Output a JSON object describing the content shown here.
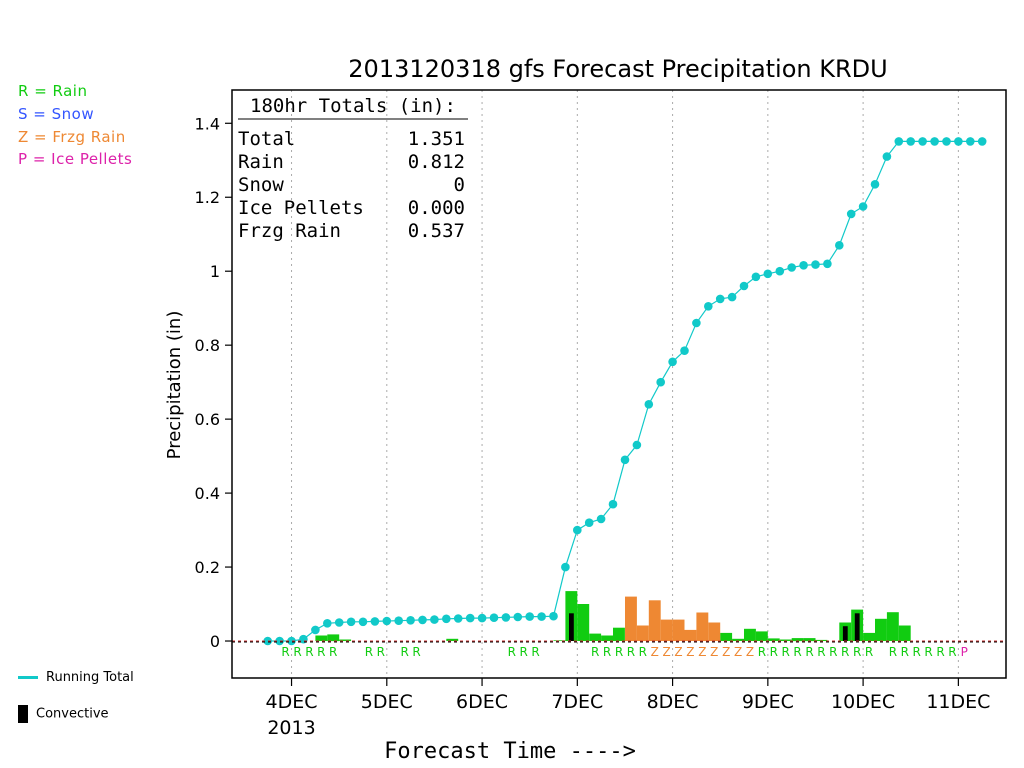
{
  "left_legend": {
    "rain": "R = Rain",
    "snow": "S = Snow",
    "frzg": "Z = Frzg Rain",
    "pellets": "P = Ice Pellets"
  },
  "bottom_legend": {
    "running_total": "Running Total",
    "convective": "Convective"
  },
  "colors": {
    "rain": "#11cc11",
    "snow": "#3355ff",
    "frzg": "#ee8833",
    "pellets": "#dd22aa",
    "running_total": "#11c9c9",
    "convective": "#000000"
  },
  "chart_data": {
    "type": "bar",
    "title": "2013120318 gfs Forecast Precipitation KRDU",
    "xlabel": "Forecast Time ---->",
    "ylabel": "Precipitation (in)",
    "ylim": [
      -0.1,
      1.49
    ],
    "yticks": [
      0,
      0.2,
      0.4,
      0.6,
      0.8,
      1,
      1.2,
      1.4
    ],
    "ytick_labels": [
      "0",
      "0.2",
      "0.4",
      "0.6",
      "0.8",
      "1",
      "1.2",
      "1.4"
    ],
    "xlim_hours": [
      0,
      180
    ],
    "day_ticks": [
      {
        "label": "4DEC",
        "sub": "2013",
        "hour": 6
      },
      {
        "label": "5DEC",
        "hour": 30
      },
      {
        "label": "6DEC",
        "hour": 54
      },
      {
        "label": "7DEC",
        "hour": 78
      },
      {
        "label": "8DEC",
        "hour": 102
      },
      {
        "label": "9DEC",
        "hour": 126
      },
      {
        "label": "10DEC",
        "hour": 150
      },
      {
        "label": "11DEC",
        "hour": 174
      }
    ],
    "grid": "vertical dotted at day boundaries",
    "totals_box": {
      "header": "180hr Totals (in):",
      "rows": [
        {
          "label": "Total",
          "value": "1.351"
        },
        {
          "label": "Rain",
          "value": "0.812"
        },
        {
          "label": "Snow",
          "value": "0"
        },
        {
          "label": "Ice Pellets",
          "value": "0.000"
        },
        {
          "label": "Frzg Rain",
          "value": "0.537"
        }
      ]
    },
    "running_total": {
      "name": "Running Total",
      "hours": [
        0,
        3,
        6,
        9,
        12,
        15,
        18,
        21,
        24,
        27,
        30,
        33,
        36,
        39,
        42,
        45,
        48,
        51,
        54,
        57,
        60,
        63,
        66,
        69,
        72,
        75,
        78,
        81,
        84,
        87,
        90,
        93,
        96,
        99,
        102,
        105,
        108,
        111,
        114,
        117,
        120,
        123,
        126,
        129,
        132,
        135,
        138,
        141,
        144,
        147,
        150,
        153,
        156,
        159,
        162,
        165,
        168,
        171,
        174,
        177,
        180
      ],
      "values": [
        0,
        0,
        0,
        0.005,
        0.03,
        0.048,
        0.05,
        0.052,
        0.052,
        0.053,
        0.054,
        0.055,
        0.056,
        0.057,
        0.058,
        0.06,
        0.061,
        0.062,
        0.062,
        0.063,
        0.064,
        0.065,
        0.066,
        0.066,
        0.067,
        0.2,
        0.3,
        0.32,
        0.33,
        0.37,
        0.49,
        0.53,
        0.64,
        0.7,
        0.755,
        0.785,
        0.86,
        0.905,
        0.925,
        0.93,
        0.96,
        0.985,
        0.993,
        1.0,
        1.01,
        1.016,
        1.018,
        1.02,
        1.07,
        1.155,
        1.175,
        1.235,
        1.31,
        1.351,
        1.351,
        1.351,
        1.351,
        1.351,
        1.351,
        1.351,
        1.351
      ]
    },
    "series": [
      {
        "name": "Rain",
        "periods": [
          {
            "hour": 12,
            "value": 0.015
          },
          {
            "hour": 15,
            "value": 0.018
          },
          {
            "hour": 18,
            "value": 0.004
          },
          {
            "hour": 45,
            "value": 0.006
          },
          {
            "hour": 72,
            "value": 0.002
          },
          {
            "hour": 75,
            "value": 0.135
          },
          {
            "hour": 78,
            "value": 0.1
          },
          {
            "hour": 81,
            "value": 0.02
          },
          {
            "hour": 84,
            "value": 0.015
          },
          {
            "hour": 87,
            "value": 0.036
          },
          {
            "hour": 114,
            "value": 0.022
          },
          {
            "hour": 117,
            "value": 0.006
          },
          {
            "hour": 120,
            "value": 0.033
          },
          {
            "hour": 123,
            "value": 0.026
          },
          {
            "hour": 126,
            "value": 0.007
          },
          {
            "hour": 129,
            "value": 0.004
          },
          {
            "hour": 132,
            "value": 0.008
          },
          {
            "hour": 135,
            "value": 0.008
          },
          {
            "hour": 138,
            "value": 0.003
          },
          {
            "hour": 144,
            "value": 0.05
          },
          {
            "hour": 147,
            "value": 0.085
          },
          {
            "hour": 150,
            "value": 0.022
          },
          {
            "hour": 153,
            "value": 0.06
          },
          {
            "hour": 156,
            "value": 0.078
          },
          {
            "hour": 159,
            "value": 0.042
          }
        ]
      },
      {
        "name": "Frzg Rain",
        "periods": [
          {
            "hour": 90,
            "value": 0.12
          },
          {
            "hour": 93,
            "value": 0.042
          },
          {
            "hour": 96,
            "value": 0.11
          },
          {
            "hour": 99,
            "value": 0.058
          },
          {
            "hour": 102,
            "value": 0.058
          },
          {
            "hour": 105,
            "value": 0.03
          },
          {
            "hour": 108,
            "value": 0.077
          },
          {
            "hour": 111,
            "value": 0.05
          }
        ]
      },
      {
        "name": "Convective",
        "periods": [
          {
            "hour": 75,
            "value": 0.075
          },
          {
            "hour": 144,
            "value": 0.04
          },
          {
            "hour": 147,
            "value": 0.075
          }
        ]
      }
    ],
    "type_labels": [
      {
        "hour": 13.5,
        "code": "R"
      },
      {
        "hour": 16.5,
        "code": "R"
      },
      {
        "hour": 19.5,
        "code": "R"
      },
      {
        "hour": 22.5,
        "code": "R"
      },
      {
        "hour": 25.5,
        "code": "R"
      },
      {
        "hour": 34.5,
        "code": "R"
      },
      {
        "hour": 37.5,
        "code": "R"
      },
      {
        "hour": 43.5,
        "code": "R"
      },
      {
        "hour": 46.5,
        "code": "R"
      },
      {
        "hour": 70.5,
        "code": "R"
      },
      {
        "hour": 73.5,
        "code": "R"
      },
      {
        "hour": 76.5,
        "code": "R"
      },
      {
        "hour": 91.5,
        "code": "R"
      },
      {
        "hour": 94.5,
        "code": "R"
      },
      {
        "hour": 97.5,
        "code": "R"
      },
      {
        "hour": 100.5,
        "code": "R"
      },
      {
        "hour": 103.5,
        "code": "R"
      },
      {
        "hour": 106.5,
        "code": "Z"
      },
      {
        "hour": 109.5,
        "code": "Z"
      },
      {
        "hour": 112.5,
        "code": "Z"
      },
      {
        "hour": 115.5,
        "code": "Z"
      },
      {
        "hour": 118.5,
        "code": "Z"
      },
      {
        "hour": 121.5,
        "code": "Z"
      },
      {
        "hour": 124.5,
        "code": "Z"
      },
      {
        "hour": 127.5,
        "code": "Z"
      },
      {
        "hour": 130.5,
        "code": "Z"
      },
      {
        "hour": 133.5,
        "code": "R"
      },
      {
        "hour": 136.5,
        "code": "R"
      },
      {
        "hour": 139.5,
        "code": "R"
      },
      {
        "hour": 142.5,
        "code": "R"
      },
      {
        "hour": 145.5,
        "code": "R"
      },
      {
        "hour": 148.5,
        "code": "R"
      },
      {
        "hour": 151.5,
        "code": "R"
      },
      {
        "hour": 154.5,
        "code": "R"
      },
      {
        "hour": 157.5,
        "code": "R"
      },
      {
        "hour": 160.5,
        "code": "R"
      },
      {
        "hour": 166.5,
        "code": "R"
      },
      {
        "hour": 169.5,
        "code": "R"
      },
      {
        "hour": 172.5,
        "code": "R"
      },
      {
        "hour": 175.5,
        "code": "R"
      },
      {
        "hour": 178.5,
        "code": "R"
      },
      {
        "hour": 181.5,
        "code": "R"
      },
      {
        "hour": 184.5,
        "code": "P"
      }
    ]
  }
}
